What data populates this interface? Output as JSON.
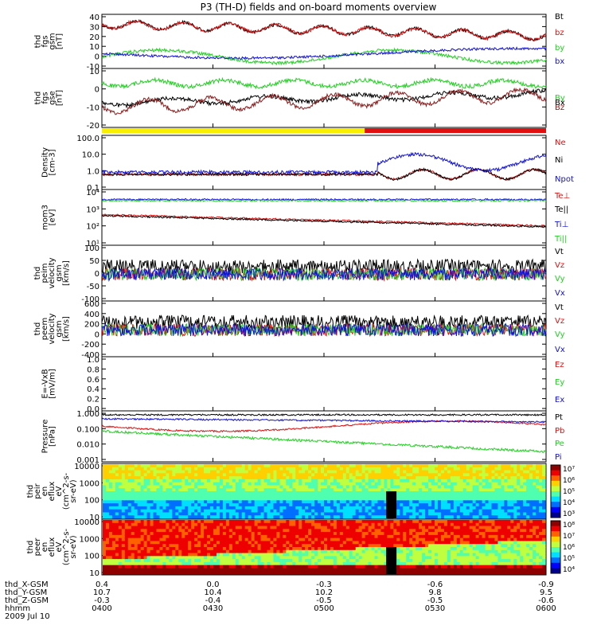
{
  "title": "P3 (TH-D) fields and on-board moments overview",
  "colors": {
    "black": "#000000",
    "red": "#e01010",
    "green": "#20d020",
    "blue": "#1010e0",
    "yellow": "#f8f000",
    "darkred": "#8b1a1a"
  },
  "chart_data": [
    {
      "type": "line",
      "panel": "fgs_gsm",
      "ylabel": [
        "thd",
        "fgs",
        "gsm",
        "[nT]"
      ],
      "ylim": [
        -10,
        40
      ],
      "yticks": [
        "40",
        "30",
        "20",
        "10",
        "0",
        "-10"
      ],
      "series": [
        {
          "name": "Bt",
          "color": "black"
        },
        {
          "name": "bz",
          "color": "red"
        },
        {
          "name": "by",
          "color": "green"
        },
        {
          "name": "bx",
          "color": "blue"
        }
      ]
    },
    {
      "type": "line",
      "panel": "fgs_gse",
      "ylabel": [
        "thd",
        "fgs",
        "gse",
        "[nT]"
      ],
      "ylim": [
        -25,
        15
      ],
      "yticks": [
        "10",
        "0",
        "-10",
        "-20"
      ],
      "series": [
        {
          "name": "By",
          "color": "green"
        },
        {
          "name": "Bx",
          "color": "black"
        },
        {
          "name": "Bz",
          "color": "darkred"
        }
      ]
    },
    {
      "type": "bar",
      "panel": "mode_bar",
      "segments": [
        {
          "color": "yellow",
          "from": "0400",
          "to": "0511"
        },
        {
          "color": "red",
          "from": "0511",
          "to": "0600"
        }
      ]
    },
    {
      "type": "line",
      "panel": "density",
      "ylabel": [
        "Density",
        "[cm-3]"
      ],
      "scale": "log",
      "yticks": [
        "100.0",
        "10.0",
        "1.0",
        "0.1"
      ],
      "series": [
        {
          "name": "Ne",
          "color": "red"
        },
        {
          "name": "Ni",
          "color": "black"
        },
        {
          "name": "Npot",
          "color": "blue"
        }
      ]
    },
    {
      "type": "line",
      "panel": "temperature",
      "ylabel": [
        "mom3",
        "[eV]"
      ],
      "scale": "log",
      "yticks": [
        "10⁴",
        "10³",
        "10²",
        "10¹"
      ],
      "series": [
        {
          "name": "Te⊥",
          "color": "red"
        },
        {
          "name": "Te||",
          "color": "black"
        },
        {
          "name": "Ti⊥",
          "color": "blue"
        },
        {
          "name": "Ti||",
          "color": "green"
        }
      ]
    },
    {
      "type": "line",
      "panel": "peim_velocity",
      "ylabel": [
        "thd",
        "peim",
        "velocity",
        "gsm",
        "[km/s]"
      ],
      "ylim": [
        -100,
        100
      ],
      "yticks": [
        "100",
        "50",
        "0",
        "-50",
        "-100"
      ],
      "series": [
        {
          "name": "Vt",
          "color": "black"
        },
        {
          "name": "Vz",
          "color": "red"
        },
        {
          "name": "Vy",
          "color": "green"
        },
        {
          "name": "Vx",
          "color": "blue"
        }
      ]
    },
    {
      "type": "line",
      "panel": "peem_velocity",
      "ylabel": [
        "thd",
        "peem",
        "velocity",
        "gsm",
        "[km/s]"
      ],
      "ylim": [
        -400,
        600
      ],
      "yticks": [
        "600",
        "400",
        "200",
        "0",
        "-200",
        "-400"
      ],
      "series": [
        {
          "name": "Vt",
          "color": "black"
        },
        {
          "name": "Vz",
          "color": "red"
        },
        {
          "name": "Vy",
          "color": "green"
        },
        {
          "name": "Vx",
          "color": "blue"
        }
      ]
    },
    {
      "type": "line",
      "panel": "efield",
      "ylabel": [
        "E=-VxB",
        "[mV/m]"
      ],
      "ylim": [
        0,
        1
      ],
      "yticks": [
        "1.0",
        "0.8",
        "0.6",
        "0.4",
        "0.2",
        "0.0"
      ],
      "series": [
        {
          "name": "Ez",
          "color": "red"
        },
        {
          "name": "Ey",
          "color": "green"
        },
        {
          "name": "Ex",
          "color": "blue"
        }
      ]
    },
    {
      "type": "line",
      "panel": "pressure",
      "ylabel": [
        "Pressure",
        "[nPa]"
      ],
      "scale": "log",
      "yticks": [
        "1.000",
        "0.100",
        "0.010",
        "0.001"
      ],
      "series": [
        {
          "name": "Pt",
          "color": "black"
        },
        {
          "name": "Pb",
          "color": "red"
        },
        {
          "name": "Pe",
          "color": "green"
        },
        {
          "name": "Pi",
          "color": "blue"
        }
      ]
    },
    {
      "type": "heatmap",
      "panel": "peir_spec",
      "ylabel": [
        "thd",
        "peir",
        "en",
        "eflux",
        "eV",
        "(cm^2-s-",
        "sr-eV)"
      ],
      "yticks": [
        "10000",
        "1000",
        "100",
        "10"
      ],
      "colorbar": [
        "10⁷",
        "10⁶",
        "10⁵",
        "10⁴",
        "10³"
      ]
    },
    {
      "type": "heatmap",
      "panel": "peer_spec",
      "ylabel": [
        "thd",
        "peer",
        "en",
        "eflux",
        "eV",
        "(cm^2-s-",
        "sr-eV)"
      ],
      "yticks": [
        "10000",
        "1000",
        "100",
        "10"
      ],
      "colorbar": [
        "10⁸",
        "10⁷",
        "10⁶",
        "10⁵",
        "10⁴"
      ]
    }
  ],
  "xaxis": {
    "rows": [
      {
        "label": "thd_X-GSM",
        "values": [
          "0.4",
          "0.0",
          "-0.3",
          "-0.6",
          "-0.9"
        ]
      },
      {
        "label": "thd_Y-GSM",
        "values": [
          "10.7",
          "10.4",
          "10.2",
          "9.8",
          "9.5"
        ]
      },
      {
        "label": "thd_Z-GSM",
        "values": [
          "-0.3",
          "-0.4",
          "-0.5",
          "-0.5",
          "-0.6"
        ]
      },
      {
        "label": "hhmm",
        "values": [
          "0400",
          "0430",
          "0500",
          "0530",
          "0600"
        ]
      }
    ],
    "date": "2009 Jul 10"
  }
}
